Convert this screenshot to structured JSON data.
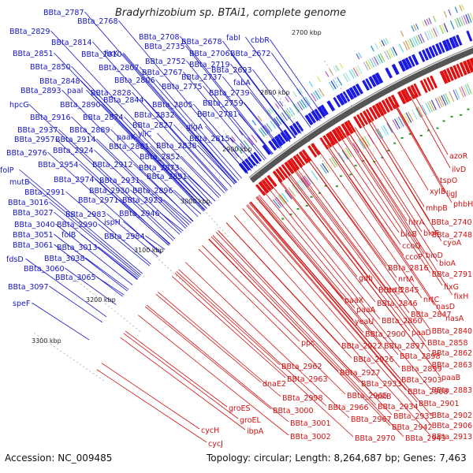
{
  "title": "Bradyrhizobium sp. BTAi1, complete genome",
  "accession": "Accession: NC_009485",
  "topology": "Topology: circular; Length: 8,264,687 bp; Genes: 7,463",
  "colors": {
    "plus_strand": "#1a1ae0",
    "minus_strand": "#e01010",
    "label_blue": "#1515c8",
    "label_red": "#d01010",
    "backbone": "#555555"
  },
  "kbp_ticks": [
    "2700 kbp",
    "2800 kbp",
    "2900 kbp",
    "3000 kbp",
    "3100 kbp",
    "3200 kbp",
    "3300 kbp"
  ],
  "blue_labels": [
    "BBta_2787",
    "BBta_2768",
    "BBta_2829",
    "BBta_2814",
    "BBta_2708",
    "fabI",
    "cbbR",
    "fixK",
    "BBta_2678",
    "BBta_2735",
    "BBta_2851",
    "BBta_2810",
    "BBta_2706",
    "BBta_2672",
    "BBta_2752",
    "BBta_2850",
    "BBta_2807",
    "BBta_2719",
    "BBta_2767",
    "BBta_2693",
    "BBta_2848",
    "BBta_2806",
    "BBta_2737",
    "fabA",
    "BBta_2893",
    "paaI",
    "BBta_2828",
    "BBta_2775",
    "BBta_2739",
    "hpcG",
    "BBta_2890",
    "BBta_2844",
    "BBta_2805",
    "BBta_2759",
    "BBta_2916",
    "BBta_2874",
    "BBta_2832",
    "BBta_2781",
    "BBta_2937",
    "BBta_2889",
    "BBta_2827",
    "glgA",
    "BBta_2957",
    "BBta_2914",
    "paaK",
    "yliC",
    "BBta_2815",
    "BBta_2976",
    "BBta_2924",
    "BBta_2881",
    "BBta_2838",
    "BBta_2852",
    "folP",
    "BBta_2954",
    "BBta_2912",
    "BBta_2873",
    "mutB",
    "BBta_2974",
    "BBta_2931",
    "BBta_2891",
    "BBta_2991",
    "BBta_2930",
    "BBta_2896",
    "BBta_3016",
    "BBta_2971",
    "BBta_2929",
    "BBta_3027",
    "BBta_2983",
    "BBta_2946",
    "BBta_3040",
    "BBta_2990",
    "ispH",
    "BBta_3051",
    "folB",
    "BBta_2984",
    "BBta_3061",
    "BBta_3013",
    "fdsD",
    "BBta_3038",
    "BBta_3060",
    "BBta_3065",
    "BBta_3097",
    "speF"
  ],
  "red_labels": [
    "azoR",
    "ilvD",
    "tspO",
    "xylB",
    "ligJ",
    "phbH",
    "mhpB",
    "htrA",
    "BBta_2740",
    "BBta_2748",
    "bioB",
    "bioF",
    "cyoA",
    "ccoQ",
    "bioD",
    "ccoP",
    "bioA",
    "BBta_2816",
    "BBta_2791",
    "gdh",
    "nrtA",
    "fixG",
    "nrtB",
    "nrtC",
    "fixH",
    "BBta_2845",
    "BBta_2846",
    "nasD",
    "paaX",
    "paaA",
    "BBta_2847",
    "nasA",
    "yeaU",
    "BBta_2860",
    "BBta_2840",
    "BBta_2900",
    "paaD",
    "BBta_2858",
    "ppc",
    "BBta_2922",
    "BBta_2897",
    "BBta_2862",
    "BBta_2898",
    "BBta_2863",
    "BBta_2962",
    "BBta_2926",
    "BBta_2899",
    "paaB",
    "BBta_2963",
    "BBta_2927",
    "BBta_2903",
    "dnaE2",
    "BBta_2933",
    "BBta_2908",
    "BBta_2883",
    "BBta_2965",
    "alkB",
    "BBta_2901",
    "BBta_2998",
    "BBta_2966",
    "BBta_2934",
    "groES",
    "BBta_3000",
    "BBta_2935",
    "BBta_2902",
    "groEL",
    "BBta_2967",
    "BBta_2906",
    "BBta_3001",
    "BBta_2942",
    "ibpA",
    "BBta_2970",
    "BBta_2943",
    "BBta_2913",
    "cycH",
    "BBta_3002",
    "cycJ"
  ]
}
